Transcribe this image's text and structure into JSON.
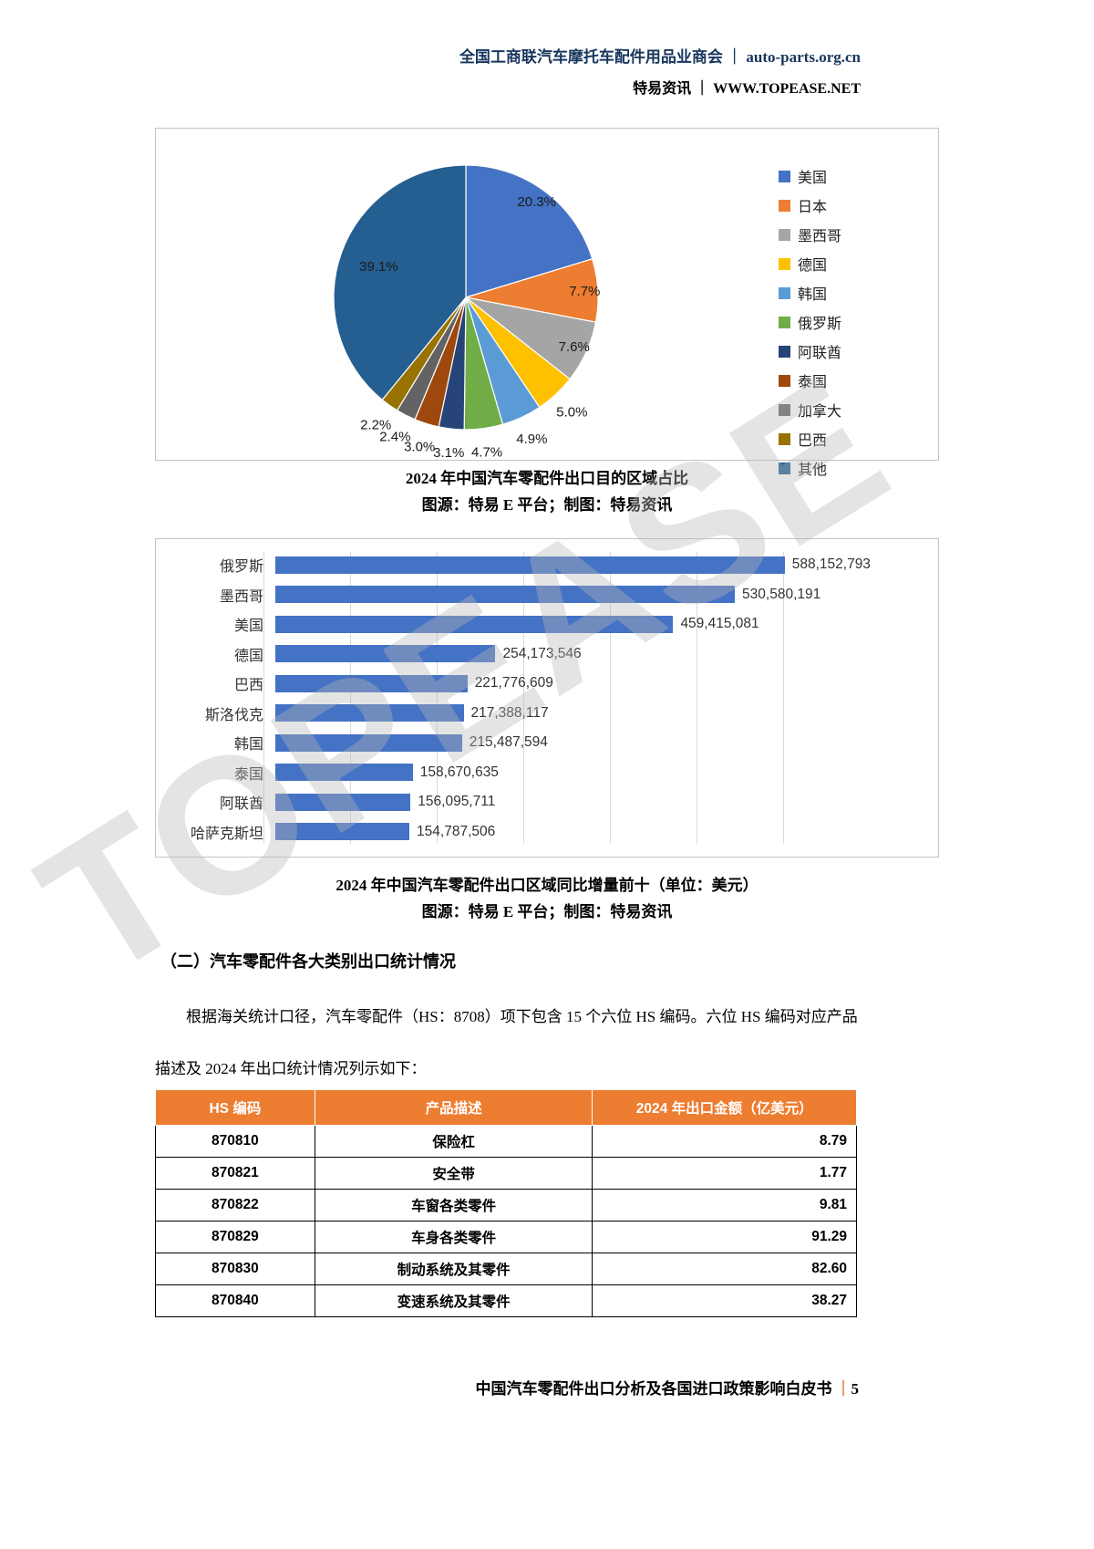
{
  "watermark": "TOPEASE",
  "header": {
    "line1": "全国工商联汽车摩托车配件用品业商会 ｜ auto-parts.org.cn",
    "line2": "特易资讯 ｜ WWW.TOPEASE.NET"
  },
  "chart_data": [
    {
      "type": "pie",
      "title": "2024 年中国汽车零配件出口目的区域占比",
      "source_note": "图源：特易 E 平台；制图：特易资讯",
      "legend_position": "right",
      "labels": [
        "美国",
        "日本",
        "墨西哥",
        "德国",
        "韩国",
        "俄罗斯",
        "阿联酋",
        "泰国",
        "加拿大",
        "巴西",
        "其他"
      ],
      "values": [
        20.3,
        7.7,
        7.6,
        5.0,
        4.9,
        4.7,
        3.1,
        3.0,
        2.4,
        2.2,
        39.1
      ],
      "value_labels": [
        "20.3%",
        "7.7%",
        "7.6%",
        "5.0%",
        "4.9%",
        "4.7%",
        "3.1%",
        "3.0%",
        "2.4%",
        "2.2%",
        "39.1%"
      ],
      "colors": [
        "#4472C4",
        "#ED7D31",
        "#A5A5A5",
        "#FFC000",
        "#5B9BD5",
        "#70AD47",
        "#264478",
        "#9E480E",
        "#636363",
        "#997300",
        "#255E91"
      ]
    },
    {
      "type": "bar",
      "orientation": "horizontal",
      "title": "2024 年中国汽车零配件出口区域同比增量前十（单位：美元）",
      "source_note": "图源：特易 E 平台；制图：特易资讯",
      "categories": [
        "俄罗斯",
        "墨西哥",
        "美国",
        "德国",
        "巴西",
        "斯洛伐克",
        "韩国",
        "泰国",
        "阿联酋",
        "哈萨克斯坦"
      ],
      "values": [
        588152793,
        530580191,
        459415081,
        254173546,
        221776609,
        217388117,
        215487594,
        158670635,
        156095711,
        154787506
      ],
      "value_labels": [
        "588,152,793",
        "530,580,191",
        "459,415,081",
        "254,173,546",
        "221,776,609",
        "217,388,117",
        "215,487,594",
        "158,670,635",
        "156,095,711",
        "154,787,506"
      ],
      "bar_color": "#4472C4",
      "xlim": [
        0,
        700000000
      ],
      "grid": true
    }
  ],
  "section": {
    "heading": "（二）汽车零配件各大类别出口统计情况",
    "para_line1": "根据海关统计口径，汽车零配件（HS：8708）项下包含 15 个六位 HS 编码。六位 HS 编码对应产品",
    "para_line2": "描述及 2024 年出口统计情况列示如下："
  },
  "table": {
    "header_bg": "#ED7D31",
    "columns": [
      "HS 编码",
      "产品描述",
      "2024 年出口金额（亿美元）"
    ],
    "rows": [
      [
        "870810",
        "保险杠",
        "8.79"
      ],
      [
        "870821",
        "安全带",
        "1.77"
      ],
      [
        "870822",
        "车窗各类零件",
        "9.81"
      ],
      [
        "870829",
        "车身各类零件",
        "91.29"
      ],
      [
        "870830",
        "制动系统及其零件",
        "82.60"
      ],
      [
        "870840",
        "变速系统及其零件",
        "38.27"
      ]
    ]
  },
  "footer": {
    "text": "中国汽车零配件出口分析及各国进口政策影响白皮书",
    "separator": "｜",
    "page_number": "5"
  }
}
